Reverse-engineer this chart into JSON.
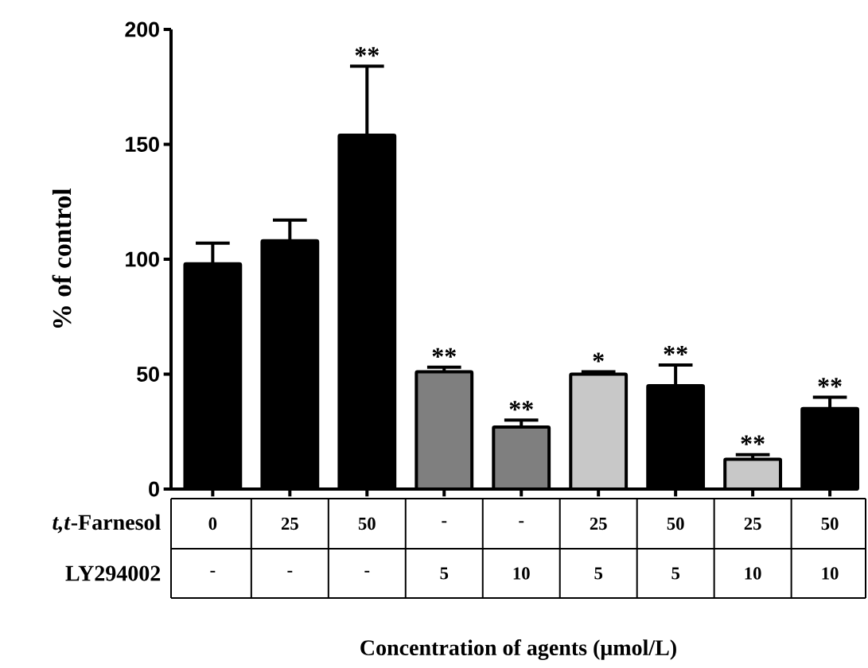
{
  "chart_data": {
    "type": "bar",
    "ylabel": "% of control",
    "xlabel": "Concentration of agents (μmol/L)",
    "categories": [
      "0",
      "25",
      "50",
      "-",
      "-",
      "25",
      "50",
      "25",
      "50"
    ],
    "values": [
      98,
      108,
      154,
      51,
      27,
      50,
      45,
      13,
      35
    ],
    "colors": [
      "#000000",
      "#000000",
      "#000000",
      "#7f7f7f",
      "#7f7f7f",
      "#c8c8c8",
      "#000000",
      "#c8c8c8",
      "#000000"
    ],
    "errors": [
      [
        98,
        107
      ],
      [
        108,
        117
      ],
      [
        154,
        184
      ],
      [
        51,
        53
      ],
      [
        27,
        30
      ],
      [
        50,
        51
      ],
      [
        45,
        54
      ],
      [
        13,
        15
      ],
      [
        35,
        40
      ]
    ],
    "value_labels": [
      null,
      null,
      "**",
      "**",
      "**",
      "*",
      "**",
      "**",
      "**"
    ],
    "annotations": [
      "*t,t*-Farnesol",
      "LY294002",
      "-",
      "-",
      "-",
      "5",
      "10",
      "5",
      "5",
      "10",
      "10"
    ],
    "ylim": [
      0,
      200
    ],
    "yticks": [
      0,
      50,
      100,
      150,
      200
    ]
  }
}
